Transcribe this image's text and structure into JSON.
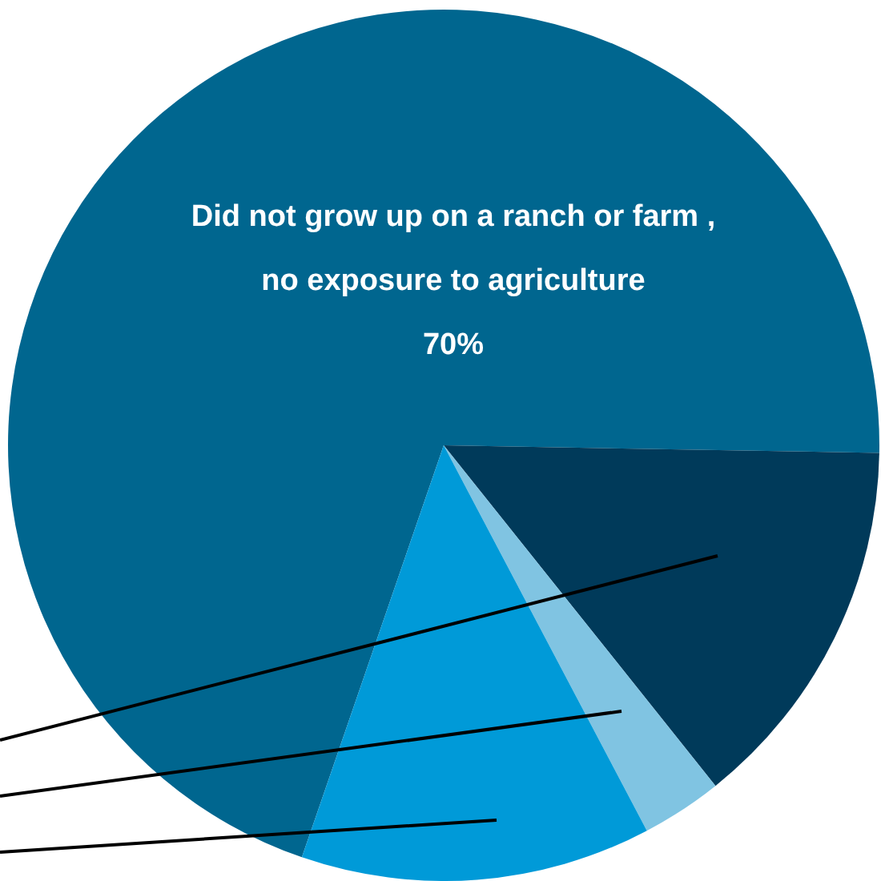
{
  "chart_data": {
    "type": "pie",
    "categories": [
      "Did not grow up on a ranch or farm , no exposure to agriculture",
      null,
      null,
      null
    ],
    "values": [
      70,
      14,
      3,
      13
    ],
    "colors": [
      "#00668f",
      "#003a5a",
      "#80c4e2",
      "#009ad8"
    ],
    "value_labels": [
      "70%",
      null,
      null,
      null
    ]
  }
}
